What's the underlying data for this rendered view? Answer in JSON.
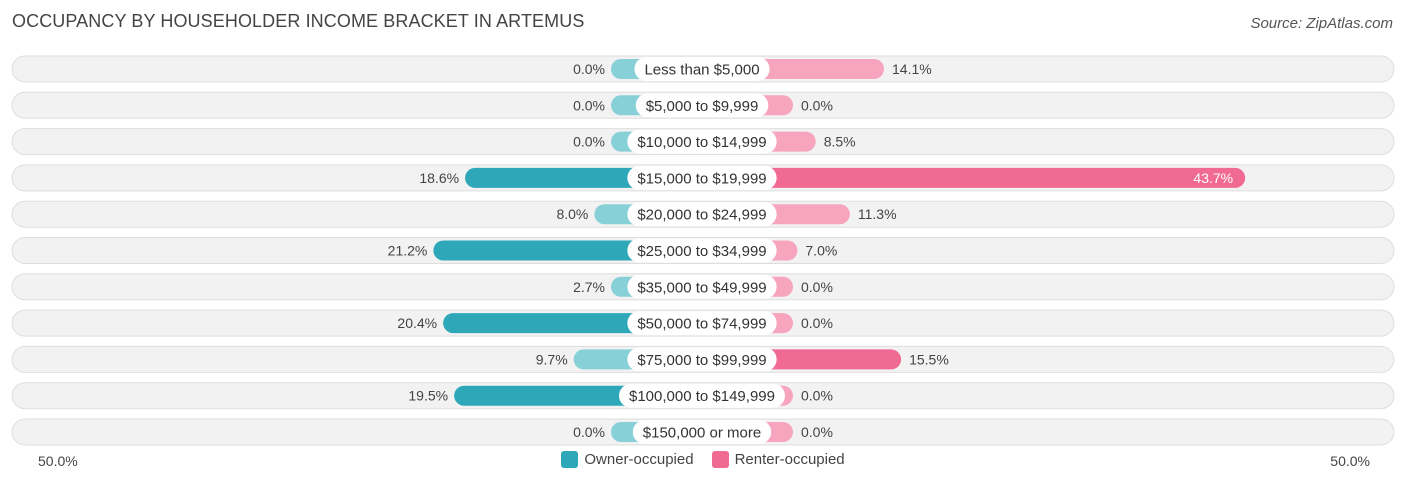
{
  "chart_data": {
    "type": "bar",
    "orientation": "horizontal-diverging",
    "title": "OCCUPANCY BY HOUSEHOLDER INCOME BRACKET IN ARTEMUS",
    "source": "Source: ZipAtlas.com",
    "categories": [
      "Less than $5,000",
      "$5,000 to $9,999",
      "$10,000 to $14,999",
      "$15,000 to $19,999",
      "$20,000 to $24,999",
      "$25,000 to $34,999",
      "$35,000 to $49,999",
      "$50,000 to $74,999",
      "$75,000 to $99,999",
      "$100,000 to $149,999",
      "$150,000 or more"
    ],
    "series": [
      {
        "name": "Owner-occupied",
        "values": [
          0.0,
          0.0,
          0.0,
          18.6,
          8.0,
          21.2,
          2.7,
          20.4,
          9.7,
          19.5,
          0.0
        ],
        "labels": [
          "0.0%",
          "0.0%",
          "0.0%",
          "18.6%",
          "8.0%",
          "21.2%",
          "2.7%",
          "20.4%",
          "9.7%",
          "19.5%",
          "0.0%"
        ]
      },
      {
        "name": "Renter-occupied",
        "values": [
          14.1,
          0.0,
          8.5,
          43.7,
          11.3,
          7.0,
          0.0,
          0.0,
          15.5,
          0.0,
          0.0
        ],
        "labels": [
          "14.1%",
          "0.0%",
          "8.5%",
          "43.7%",
          "11.3%",
          "7.0%",
          "0.0%",
          "0.0%",
          "15.5%",
          "0.0%",
          "0.0%"
        ]
      }
    ],
    "xlim": [
      -50,
      50
    ],
    "axis_labels": {
      "left": "50.0%",
      "right": "50.0%"
    },
    "legend": {
      "position": "bottom-center",
      "owner_label": "Owner-occupied",
      "renter_label": "Renter-occupied"
    },
    "colors": {
      "owner_strong": "#2ea8b9",
      "owner_light": "#88d0d8",
      "renter_strong": "#f06a94",
      "renter_light": "#f7a5bf",
      "row_bg": "#f2f2f2",
      "row_border": "#dedede"
    }
  }
}
